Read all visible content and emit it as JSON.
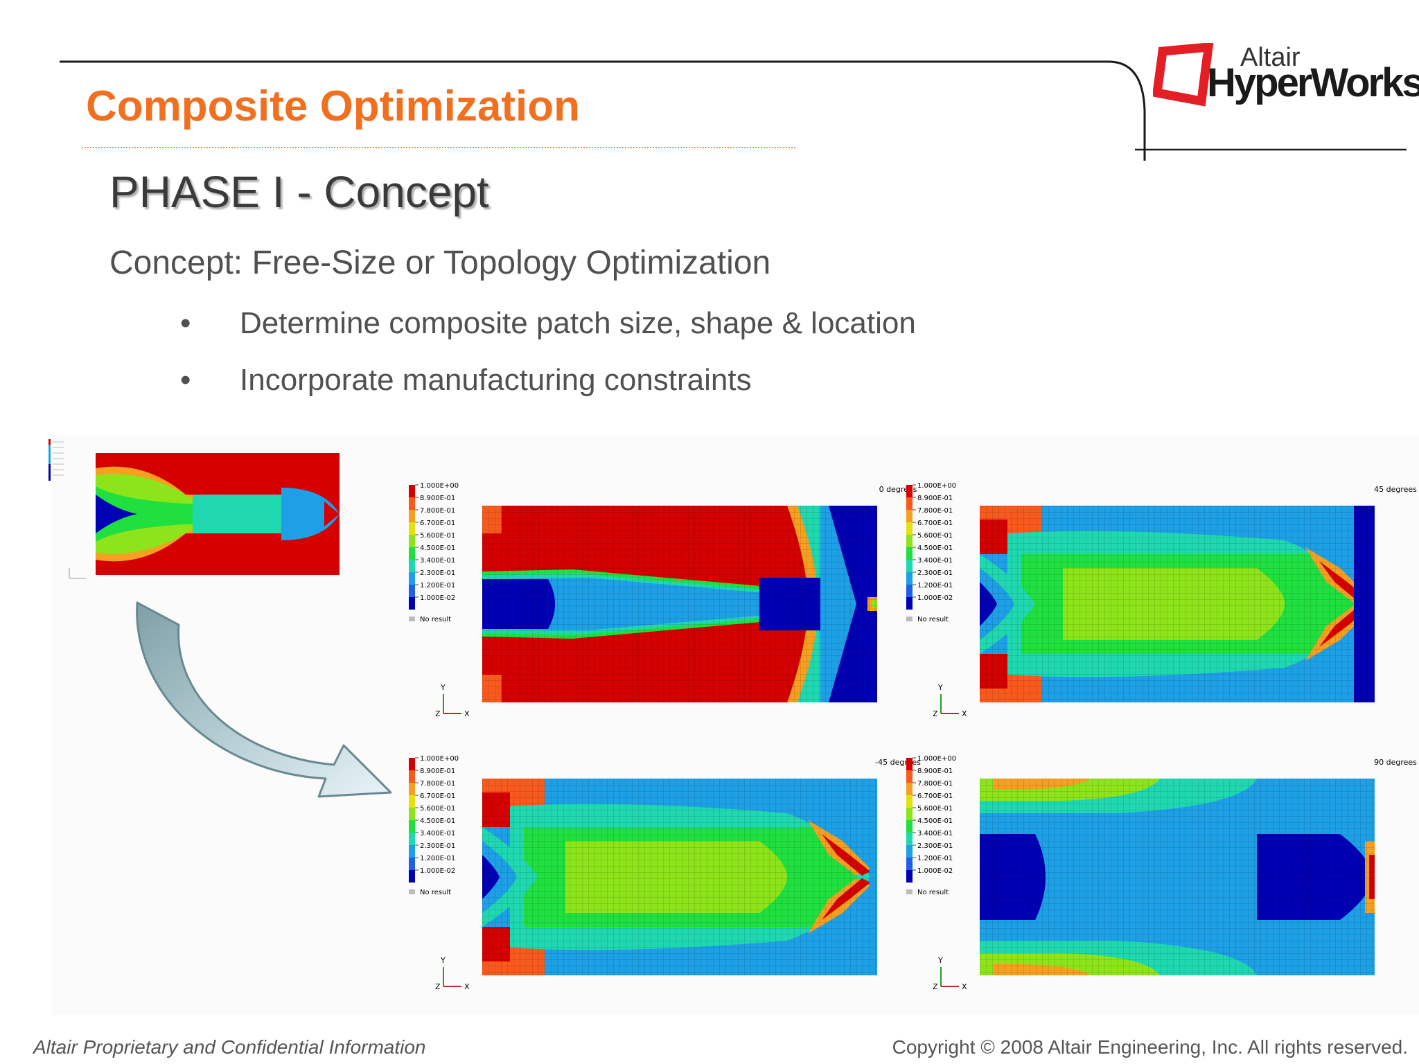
{
  "header": {
    "title": "Composite Optimization",
    "logo": {
      "brand_small": "Altair",
      "brand_big": "HyperWorks",
      "accent_color": "#e31e24"
    }
  },
  "slide": {
    "heading": "PHASE I - Concept",
    "subheading": "Concept: Free-Size or Topology Optimization",
    "bullets": [
      "Determine composite patch size, shape & location",
      "Incorporate manufacturing constraints"
    ],
    "bullet_symbol": "•"
  },
  "figure": {
    "arrow_icon": "curved-arrow-icon",
    "legend_labels": [
      "1.000E+00",
      "8.900E-01",
      "7.800E-01",
      "6.700E-01",
      "5.600E-01",
      "4.500E-01",
      "3.400E-01",
      "2.300E-01",
      "1.200E-01",
      "1.000E-02"
    ],
    "legend_no_result": "No result",
    "legend_colors": [
      "#d50000",
      "#f85a1e",
      "#f5a020",
      "#e5e010",
      "#8ee41a",
      "#20e040",
      "#20d8b0",
      "#1ea0e6",
      "#2060e8",
      "#0000b4"
    ],
    "axis_labels": {
      "y": "Y",
      "x": "X",
      "z": "Z"
    },
    "plots": [
      {
        "id": "plot-0",
        "title": "0 degrees"
      },
      {
        "id": "plot-45",
        "title": "45 degrees"
      },
      {
        "id": "plot-minus45",
        "title": "-45 degrees"
      },
      {
        "id": "plot-90",
        "title": "90 degrees"
      }
    ]
  },
  "footer": {
    "left": "Altair Proprietary and Confidential Information",
    "right": "Copyright © 2008 Altair Engineering, Inc. All rights reserved."
  }
}
